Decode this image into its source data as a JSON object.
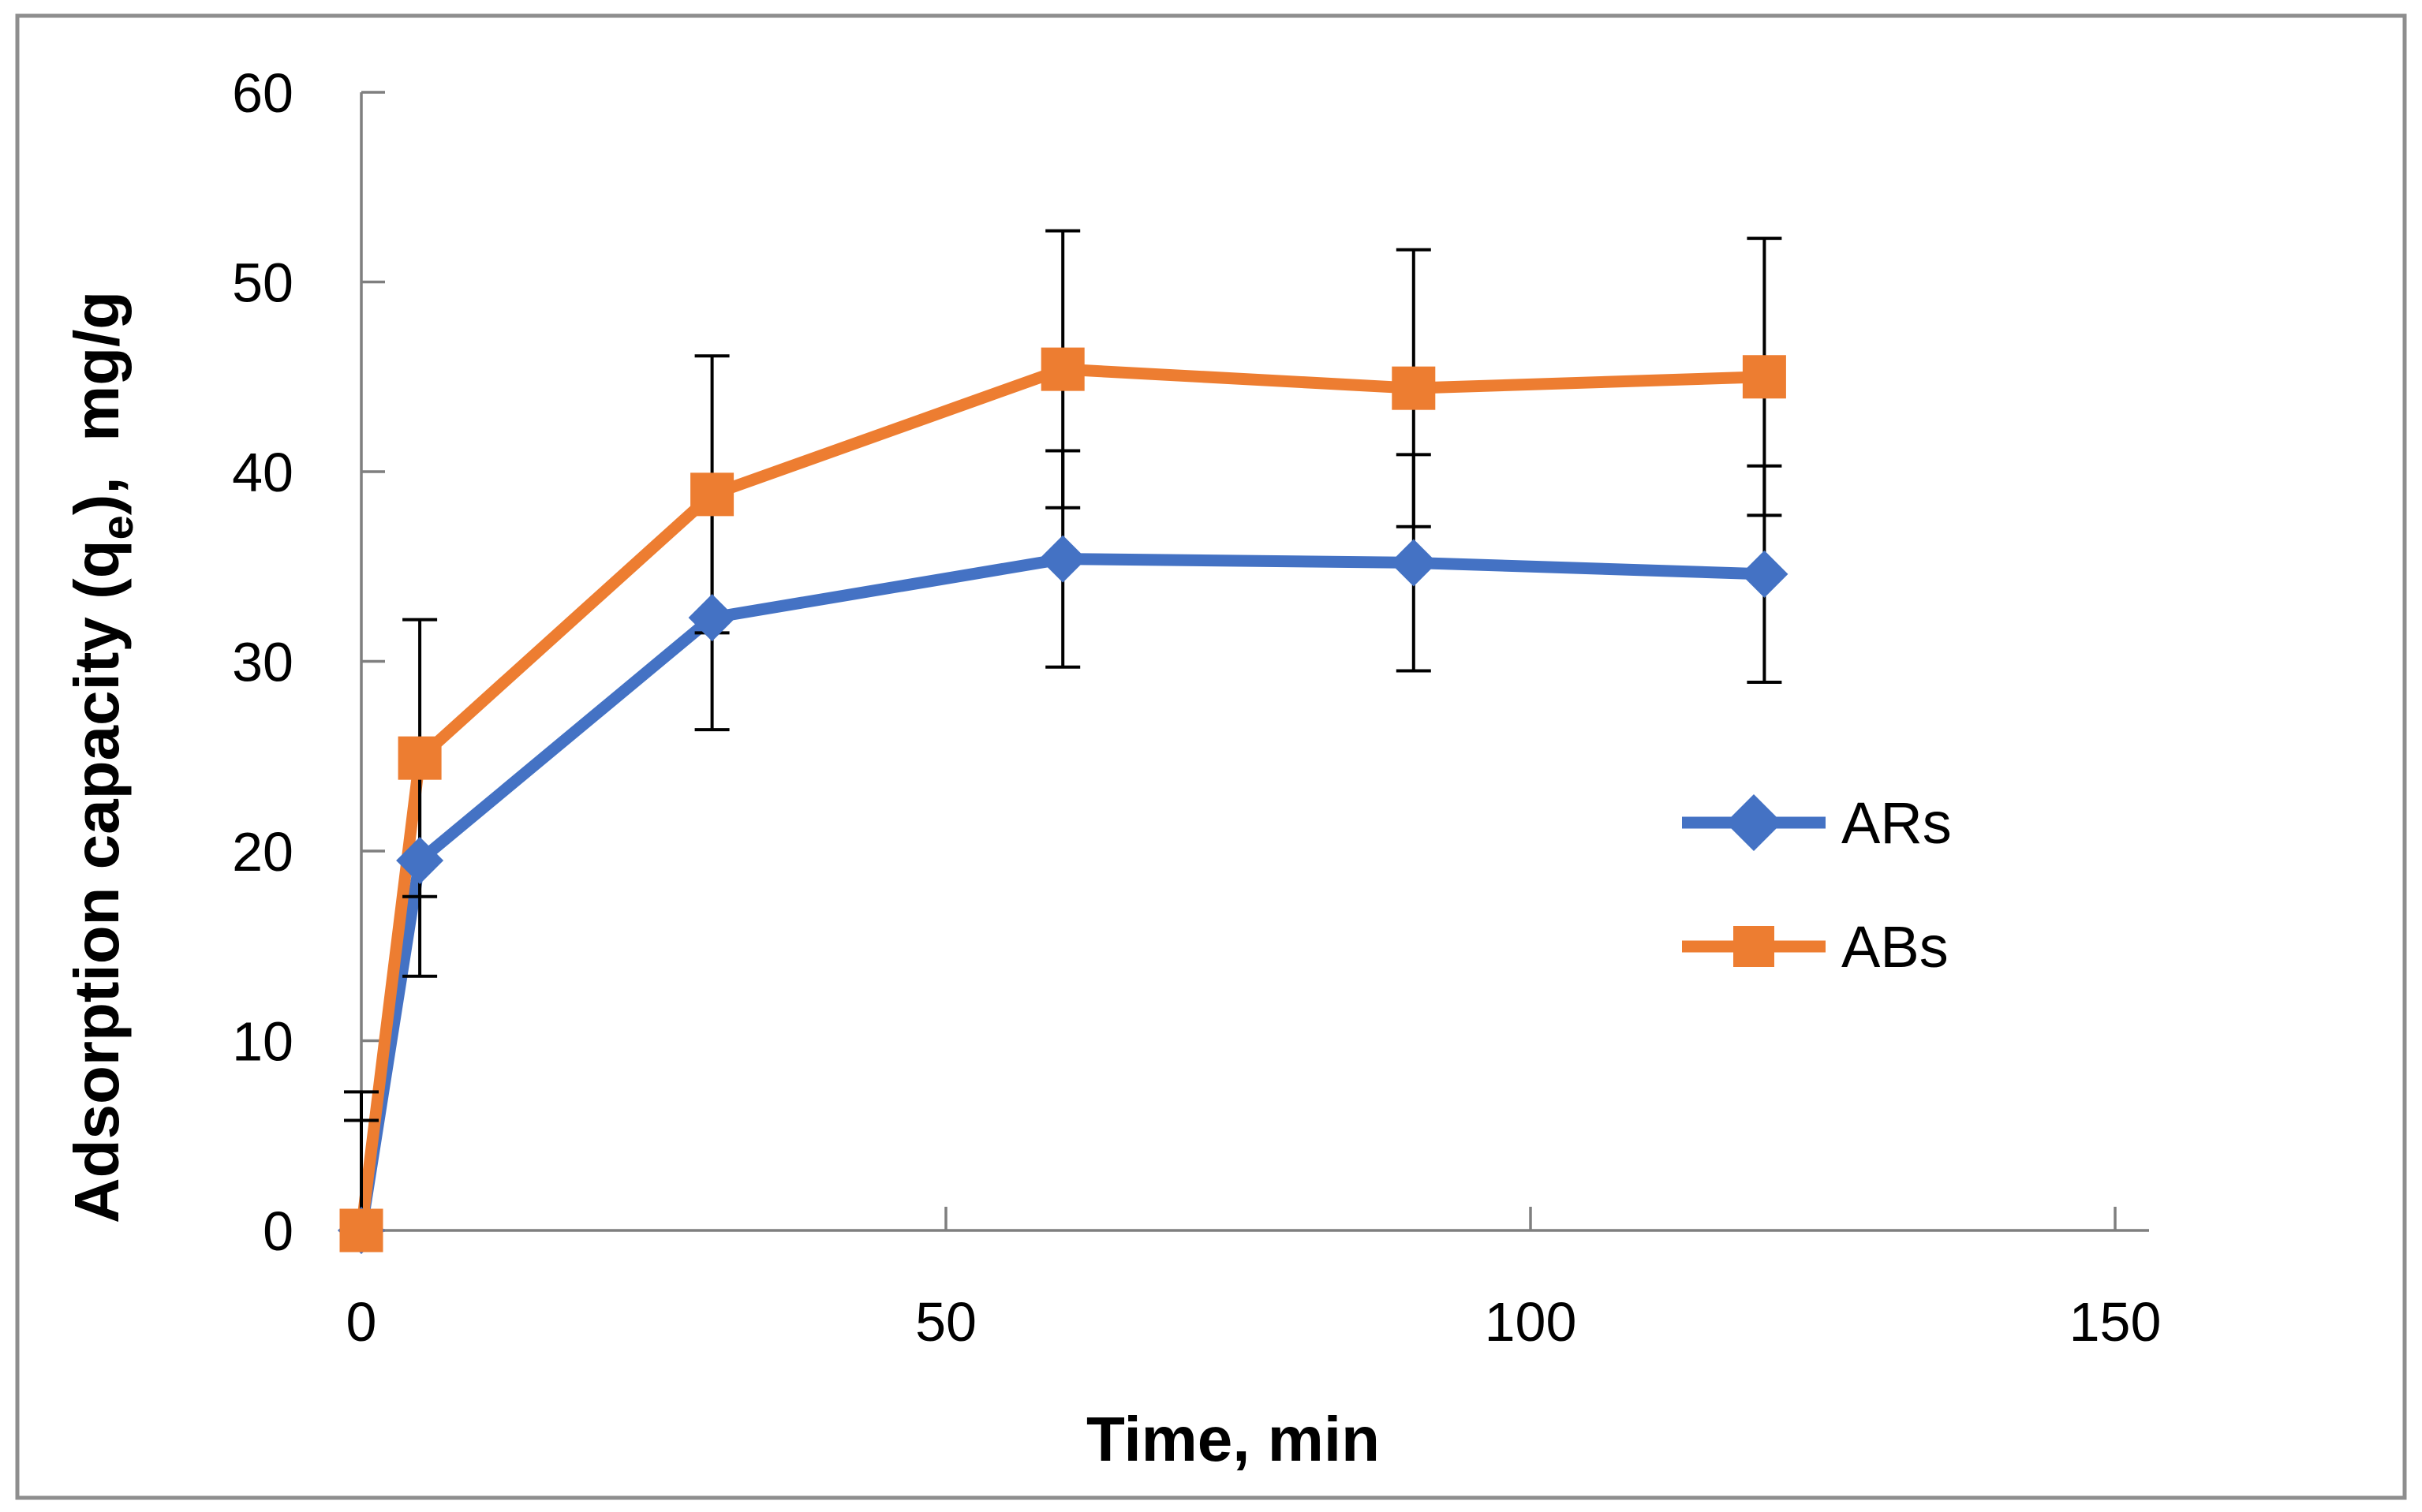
{
  "chart_data": {
    "type": "line",
    "x": [
      0,
      5,
      30,
      60,
      90,
      120
    ],
    "series": [
      {
        "name": "ARs",
        "color": "#4472C4",
        "marker": "diamond",
        "values": [
          0,
          19.5,
          32.3,
          35.4,
          35.2,
          34.6
        ],
        "errors": [
          5.8,
          6.1,
          5.9,
          5.7,
          5.7,
          5.7
        ]
      },
      {
        "name": "ABs",
        "color": "#ED7D31",
        "marker": "square",
        "values": [
          0,
          24.9,
          38.8,
          45.4,
          44.4,
          45.0
        ],
        "errors": [
          7.3,
          7.3,
          7.3,
          7.3,
          7.3,
          7.3
        ]
      }
    ],
    "title": "",
    "xlabel": "Time, min",
    "ylabel": "Adsorption capacity (qe), mg/g",
    "ylabel_parts": {
      "prefix": "Adsorption capacity (q",
      "sub": "e",
      "suffix": "),  mg/g"
    },
    "xlim": [
      0,
      150
    ],
    "ylim": [
      0,
      60
    ],
    "x_ticks": [
      0,
      50,
      100,
      150
    ],
    "y_ticks": [
      0,
      10,
      20,
      30,
      40,
      50,
      60
    ],
    "x_tick_labels": [
      "0",
      "50",
      "100",
      "150"
    ],
    "y_tick_labels": [
      "0",
      "10",
      "20",
      "30",
      "40",
      "50",
      "60"
    ],
    "grid": false,
    "legend_position": "center-right",
    "error_bars": "vertical, black, with caps; clipped at y=0",
    "colors": {
      "series_blue": "#4472C4",
      "series_orange": "#ED7D31",
      "axis": "#7F7F7F",
      "error_bar": "#000000",
      "outer_border": "#8E8E8E",
      "background": "#FFFFFF"
    }
  }
}
